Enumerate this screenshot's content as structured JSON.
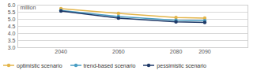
{
  "chart_data": {
    "type": "line",
    "y_label": "million",
    "x": [
      2040,
      2060,
      2080,
      2090
    ],
    "xlim": [
      2025,
      2105
    ],
    "xticks": [
      2040,
      2060,
      2080,
      2090
    ],
    "ylim": [
      3,
      6
    ],
    "yticks": [
      {
        "value": 3,
        "label": "3.0"
      },
      {
        "value": 3.5,
        "label": "3.5"
      },
      {
        "value": 4,
        "label": "4.0"
      },
      {
        "value": 4.5,
        "label": "4.5"
      },
      {
        "value": 5,
        "label": "5.0"
      },
      {
        "value": 5.5,
        "label": "5.5"
      },
      {
        "value": 6,
        "label": "6.0"
      }
    ],
    "grid": true,
    "legend": "bottom",
    "marker": "circle",
    "series": [
      {
        "name": "optimistic scenario",
        "color": "#e3b54a",
        "values": [
          5.75,
          5.42,
          5.13,
          5.08
        ]
      },
      {
        "name": "trend-based scenario",
        "color": "#4a9ec4",
        "values": [
          5.62,
          5.2,
          4.93,
          4.9
        ]
      },
      {
        "name": "pessimistic scenario",
        "color": "#1f3a68",
        "values": [
          5.58,
          5.08,
          4.82,
          4.78
        ]
      }
    ]
  }
}
